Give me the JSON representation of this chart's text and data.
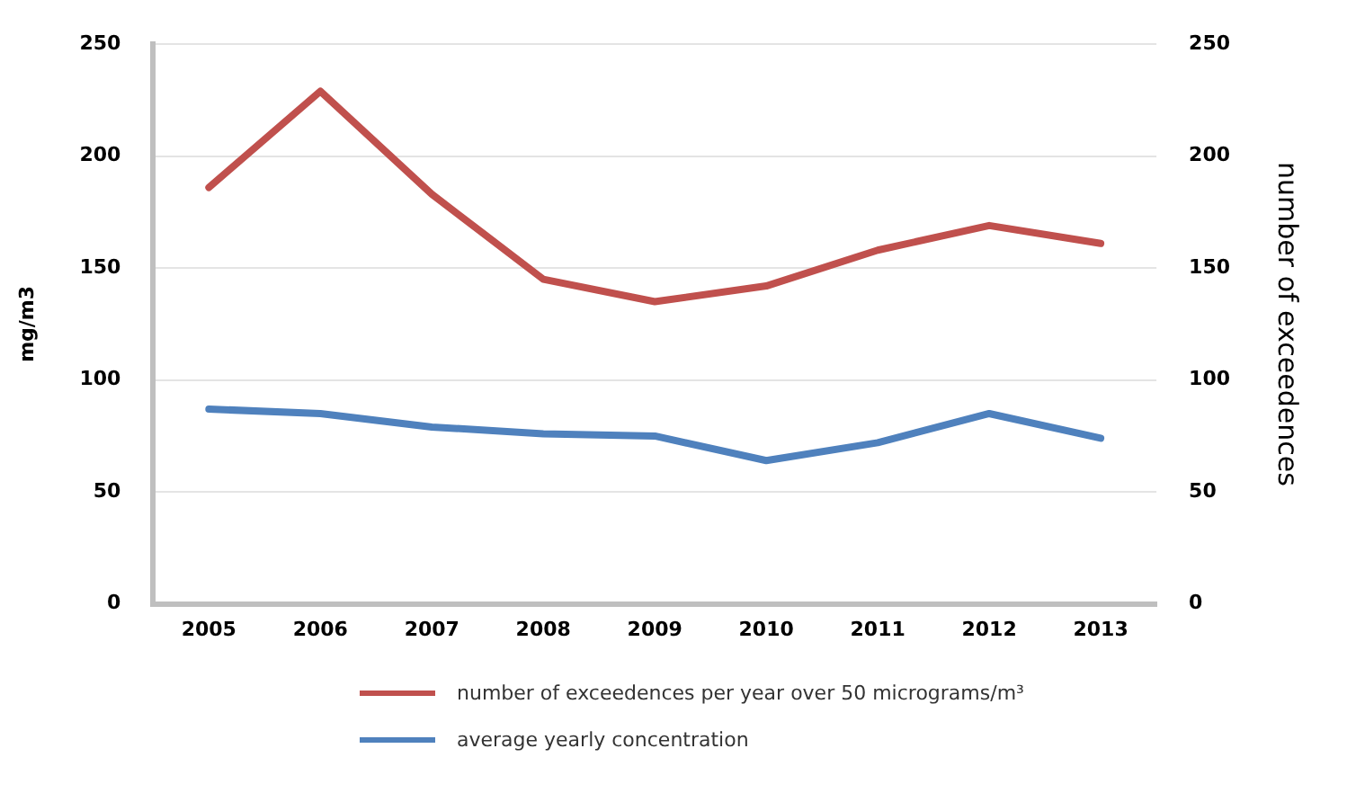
{
  "chart_data": {
    "type": "line",
    "ylabel": "mg/m3",
    "y2label": "number of exceedences",
    "categories": [
      "2005",
      "2006",
      "2007",
      "2008",
      "2009",
      "2010",
      "2011",
      "2012",
      "2013"
    ],
    "series": [
      {
        "name": "number of exceedences per year over 50 micrograms/m³",
        "color": "#c0504d",
        "axis": "y2",
        "values": [
          186,
          229,
          183,
          145,
          135,
          142,
          158,
          169,
          161
        ]
      },
      {
        "name": "average yearly concentration",
        "color": "#4f81bd",
        "values": [
          87,
          85,
          79,
          76,
          75,
          64,
          72,
          85,
          74
        ]
      }
    ],
    "ylim": [
      0,
      250
    ],
    "yticks": [
      0,
      50,
      100,
      150,
      200,
      250
    ],
    "y2lim": [
      0,
      250
    ],
    "y2ticks": [
      0,
      50,
      100,
      150,
      200,
      250
    ],
    "grid": "y",
    "legend": "bottom",
    "marker": "none",
    "line_style": "solid"
  }
}
